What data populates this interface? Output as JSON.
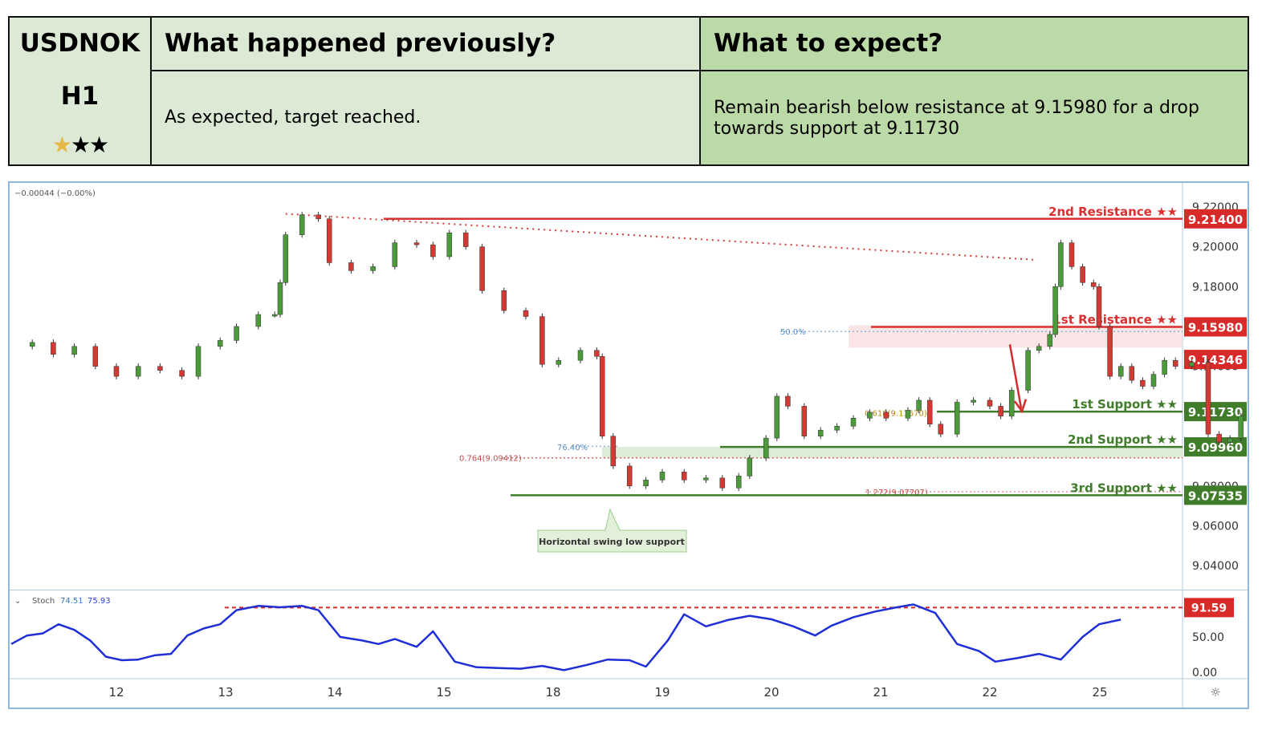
{
  "header": {
    "symbol": "USDNOK",
    "timeframe": "H1",
    "rating_stars": [
      "★",
      "★★"
    ],
    "previous_title": "What happened previously?",
    "previous_text": "As expected, target reached.",
    "expect_title": "What to expect?",
    "expect_text": "Remain bearish below resistance at 9.15980 for a drop towards support at 9.11730"
  },
  "chart_data": {
    "type": "line",
    "ohlc_change": "−0.00044 (−0.00%)",
    "x_ticks": [
      "12",
      "13",
      "14",
      "15",
      "18",
      "19",
      "20",
      "21",
      "22",
      "25"
    ],
    "y_ticks": [
      "9.22000",
      "9.20000",
      "9.18000",
      "9.14000",
      "9.08000",
      "9.06000",
      "9.04000"
    ],
    "ylim": [
      9.028,
      9.228
    ],
    "price_close_series": [
      {
        "day": 11.0,
        "price": 9.15
      },
      {
        "day": 11.2,
        "price": 9.152
      },
      {
        "day": 11.4,
        "price": 9.146
      },
      {
        "day": 11.6,
        "price": 9.15
      },
      {
        "day": 11.8,
        "price": 9.14
      },
      {
        "day": 12.0,
        "price": 9.135
      },
      {
        "day": 12.2,
        "price": 9.14
      },
      {
        "day": 12.4,
        "price": 9.138
      },
      {
        "day": 12.6,
        "price": 9.135
      },
      {
        "day": 12.75,
        "price": 9.15
      },
      {
        "day": 12.95,
        "price": 9.153
      },
      {
        "day": 13.1,
        "price": 9.16
      },
      {
        "day": 13.3,
        "price": 9.166
      },
      {
        "day": 13.45,
        "price": 9.166
      },
      {
        "day": 13.5,
        "price": 9.182
      },
      {
        "day": 13.55,
        "price": 9.206
      },
      {
        "day": 13.7,
        "price": 9.216
      },
      {
        "day": 13.85,
        "price": 9.214
      },
      {
        "day": 13.95,
        "price": 9.192
      },
      {
        "day": 14.15,
        "price": 9.188
      },
      {
        "day": 14.35,
        "price": 9.19
      },
      {
        "day": 14.55,
        "price": 9.202
      },
      {
        "day": 14.75,
        "price": 9.201
      },
      {
        "day": 14.9,
        "price": 9.195
      },
      {
        "day": 15.05,
        "price": 9.207
      },
      {
        "day": 15.2,
        "price": 9.2
      },
      {
        "day": 15.35,
        "price": 9.178
      },
      {
        "day": 15.55,
        "price": 9.168
      },
      {
        "day": 15.75,
        "price": 9.165
      },
      {
        "day": 15.9,
        "price": 9.141
      },
      {
        "day": 16.05,
        "price": 9.143
      },
      {
        "day": 16.25,
        "price": 9.148
      },
      {
        "day": 16.4,
        "price": 9.145
      },
      {
        "day": 16.45,
        "price": 9.105
      },
      {
        "day": 16.55,
        "price": 9.09
      },
      {
        "day": 16.7,
        "price": 9.08
      },
      {
        "day": 16.85,
        "price": 9.083
      },
      {
        "day": 17.0,
        "price": 9.087
      },
      {
        "day": 17.2,
        "price": 9.083
      },
      {
        "day": 17.4,
        "price": 9.084
      },
      {
        "day": 17.55,
        "price": 9.079
      },
      {
        "day": 17.7,
        "price": 9.085
      },
      {
        "day": 17.8,
        "price": 9.094
      },
      {
        "day": 17.95,
        "price": 9.104
      },
      {
        "day": 18.05,
        "price": 9.125
      },
      {
        "day": 18.15,
        "price": 9.12
      },
      {
        "day": 18.3,
        "price": 9.105
      },
      {
        "day": 18.45,
        "price": 9.108
      },
      {
        "day": 18.6,
        "price": 9.11
      },
      {
        "day": 18.75,
        "price": 9.114
      },
      {
        "day": 18.9,
        "price": 9.117
      },
      {
        "day": 19.05,
        "price": 9.114
      },
      {
        "day": 19.25,
        "price": 9.118
      },
      {
        "day": 19.35,
        "price": 9.123
      },
      {
        "day": 19.45,
        "price": 9.111
      },
      {
        "day": 19.55,
        "price": 9.106
      },
      {
        "day": 19.7,
        "price": 9.122
      },
      {
        "day": 19.85,
        "price": 9.123
      },
      {
        "day": 20.0,
        "price": 9.12
      },
      {
        "day": 20.1,
        "price": 9.115
      },
      {
        "day": 20.2,
        "price": 9.128
      },
      {
        "day": 20.35,
        "price": 9.148
      },
      {
        "day": 20.45,
        "price": 9.15
      },
      {
        "day": 20.55,
        "price": 9.156
      },
      {
        "day": 20.6,
        "price": 9.18
      },
      {
        "day": 20.65,
        "price": 9.202
      },
      {
        "day": 20.75,
        "price": 9.19
      },
      {
        "day": 20.85,
        "price": 9.182
      },
      {
        "day": 20.95,
        "price": 9.18
      },
      {
        "day": 21.0,
        "price": 9.16
      },
      {
        "day": 21.1,
        "price": 9.135
      },
      {
        "day": 21.2,
        "price": 9.14
      },
      {
        "day": 21.3,
        "price": 9.133
      },
      {
        "day": 21.4,
        "price": 9.13
      },
      {
        "day": 21.5,
        "price": 9.136
      },
      {
        "day": 21.6,
        "price": 9.143
      },
      {
        "day": 21.7,
        "price": 9.14
      },
      {
        "day": 21.85,
        "price": 9.142
      },
      {
        "day": 22.0,
        "price": 9.106
      },
      {
        "day": 22.1,
        "price": 9.102
      },
      {
        "day": 22.2,
        "price": 9.104
      },
      {
        "day": 22.3,
        "price": 9.115
      },
      {
        "day": 22.45,
        "price": 9.128
      },
      {
        "day": 22.6,
        "price": 9.138
      },
      {
        "day": 22.75,
        "price": 9.142
      },
      {
        "day": 22.85,
        "price": 9.145
      },
      {
        "day": 22.95,
        "price": 9.143
      },
      {
        "day": 23.05,
        "price": 9.143
      }
    ],
    "levels": [
      {
        "label": "2nd Resistance ★★",
        "value": "9.21400",
        "price": 9.214,
        "kind": "resistance"
      },
      {
        "label": "1st Resistance ★★",
        "value": "9.15980",
        "price": 9.1598,
        "kind": "resistance"
      },
      {
        "label": "",
        "value": "9.14346",
        "price": 9.14346,
        "kind": "current"
      },
      {
        "label": "1st Support ★★",
        "value": "9.11730",
        "price": 9.1173,
        "kind": "support"
      },
      {
        "label": "2nd Support ★★",
        "value": "9.09960",
        "price": 9.0996,
        "kind": "support"
      },
      {
        "label": "3rd Support ★★",
        "value": "9.07535",
        "price": 9.07535,
        "kind": "support"
      }
    ],
    "fib_labels": {
      "fib_50": "50.0%",
      "fib_618": "0.618(9.11670)",
      "fib_7640": "76.40%",
      "fib_764": "0.764(9.09412)",
      "fib_1272": "1.272(9.07707)"
    },
    "annotation": "Horizontal swing low support",
    "stochastic": {
      "label": "Stoch",
      "k_value": "74.51",
      "d_value": "75.93",
      "level_label": "91.59",
      "level": 91.59,
      "y_ticks": [
        "50.00",
        "0.00"
      ],
      "series": [
        {
          "day": 11.0,
          "v": 40
        },
        {
          "day": 11.15,
          "v": 52
        },
        {
          "day": 11.3,
          "v": 55
        },
        {
          "day": 11.45,
          "v": 68
        },
        {
          "day": 11.6,
          "v": 60
        },
        {
          "day": 11.75,
          "v": 45
        },
        {
          "day": 11.9,
          "v": 22
        },
        {
          "day": 12.05,
          "v": 17
        },
        {
          "day": 12.2,
          "v": 18
        },
        {
          "day": 12.35,
          "v": 24
        },
        {
          "day": 12.5,
          "v": 26
        },
        {
          "day": 12.65,
          "v": 52
        },
        {
          "day": 12.8,
          "v": 62
        },
        {
          "day": 12.95,
          "v": 68
        },
        {
          "day": 13.1,
          "v": 88
        },
        {
          "day": 13.3,
          "v": 94
        },
        {
          "day": 13.5,
          "v": 92
        },
        {
          "day": 13.7,
          "v": 94
        },
        {
          "day": 13.85,
          "v": 88
        },
        {
          "day": 14.05,
          "v": 50
        },
        {
          "day": 14.25,
          "v": 45
        },
        {
          "day": 14.4,
          "v": 40
        },
        {
          "day": 14.55,
          "v": 47
        },
        {
          "day": 14.75,
          "v": 36
        },
        {
          "day": 14.9,
          "v": 58
        },
        {
          "day": 15.1,
          "v": 15
        },
        {
          "day": 15.3,
          "v": 7
        },
        {
          "day": 15.5,
          "v": 6
        },
        {
          "day": 15.7,
          "v": 5
        },
        {
          "day": 15.9,
          "v": 9
        },
        {
          "day": 16.1,
          "v": 3
        },
        {
          "day": 16.3,
          "v": 10
        },
        {
          "day": 16.5,
          "v": 18
        },
        {
          "day": 16.7,
          "v": 17
        },
        {
          "day": 16.85,
          "v": 8
        },
        {
          "day": 17.05,
          "v": 45
        },
        {
          "day": 17.2,
          "v": 82
        },
        {
          "day": 17.4,
          "v": 65
        },
        {
          "day": 17.6,
          "v": 74
        },
        {
          "day": 17.8,
          "v": 80
        },
        {
          "day": 18.0,
          "v": 75
        },
        {
          "day": 18.2,
          "v": 65
        },
        {
          "day": 18.4,
          "v": 52
        },
        {
          "day": 18.55,
          "v": 66
        },
        {
          "day": 18.75,
          "v": 78
        },
        {
          "day": 18.95,
          "v": 86
        },
        {
          "day": 19.15,
          "v": 92
        },
        {
          "day": 19.3,
          "v": 96
        },
        {
          "day": 19.5,
          "v": 84
        },
        {
          "day": 19.7,
          "v": 40
        },
        {
          "day": 19.9,
          "v": 30
        },
        {
          "day": 20.05,
          "v": 15
        },
        {
          "day": 20.25,
          "v": 20
        },
        {
          "day": 20.45,
          "v": 26
        },
        {
          "day": 20.65,
          "v": 18
        },
        {
          "day": 20.85,
          "v": 50
        },
        {
          "day": 21.0,
          "v": 68
        },
        {
          "day": 21.2,
          "v": 74.51
        }
      ]
    }
  }
}
